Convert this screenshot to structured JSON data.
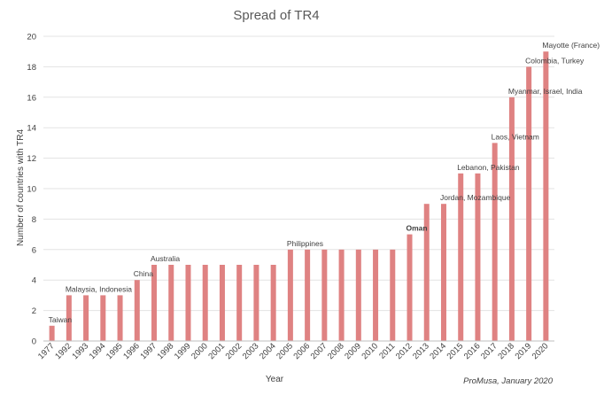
{
  "chart_data": {
    "type": "bar",
    "title": "Spread of TR4",
    "xlabel": "Year",
    "ylabel": "Number  of countries with TR4",
    "ylim": [
      0,
      20
    ],
    "yticks": [
      0,
      2,
      4,
      6,
      8,
      10,
      12,
      14,
      16,
      18,
      20
    ],
    "grid": true,
    "legend": "none",
    "bar_color": "#df8282",
    "categories": [
      "1977",
      "1992",
      "1993",
      "1994",
      "1995",
      "1996",
      "1997",
      "1998",
      "1999",
      "2000",
      "2001",
      "2002",
      "2003",
      "2004",
      "2005",
      "2006",
      "2007",
      "2008",
      "2009",
      "2010",
      "2011",
      "2012",
      "2013",
      "2014",
      "2015",
      "2016",
      "2017",
      "2018",
      "2019",
      "2020"
    ],
    "values": [
      1,
      3,
      3,
      3,
      3,
      4,
      5,
      5,
      5,
      5,
      5,
      5,
      5,
      5,
      6,
      6,
      6,
      6,
      6,
      6,
      6,
      7,
      9,
      9,
      11,
      11,
      13,
      16,
      18,
      19
    ],
    "annotations": [
      {
        "category": "1977",
        "text": "Taiwan",
        "bold": false
      },
      {
        "category": "1992",
        "text": "Malaysia, Indonesia",
        "bold": false
      },
      {
        "category": "1996",
        "text": "China",
        "bold": false
      },
      {
        "category": "1997",
        "text": "Australia",
        "bold": false
      },
      {
        "category": "2005",
        "text": "Philippines",
        "bold": false
      },
      {
        "category": "2012",
        "text": "Oman",
        "bold": true
      },
      {
        "category": "2014",
        "text": "Jordan, Mozambique",
        "bold": false
      },
      {
        "category": "2015",
        "text": "Lebanon, Pakistan",
        "bold": false
      },
      {
        "category": "2017",
        "text": "Laos, Vietnam",
        "bold": false
      },
      {
        "category": "2018",
        "text": "Myanmar, Israel, India",
        "bold": false
      },
      {
        "category": "2019",
        "text": "Colombia, Turkey",
        "bold": false
      },
      {
        "category": "2020",
        "text": "Mayotte (France)",
        "bold": false
      }
    ]
  },
  "credit": "ProMusa, January 2020"
}
